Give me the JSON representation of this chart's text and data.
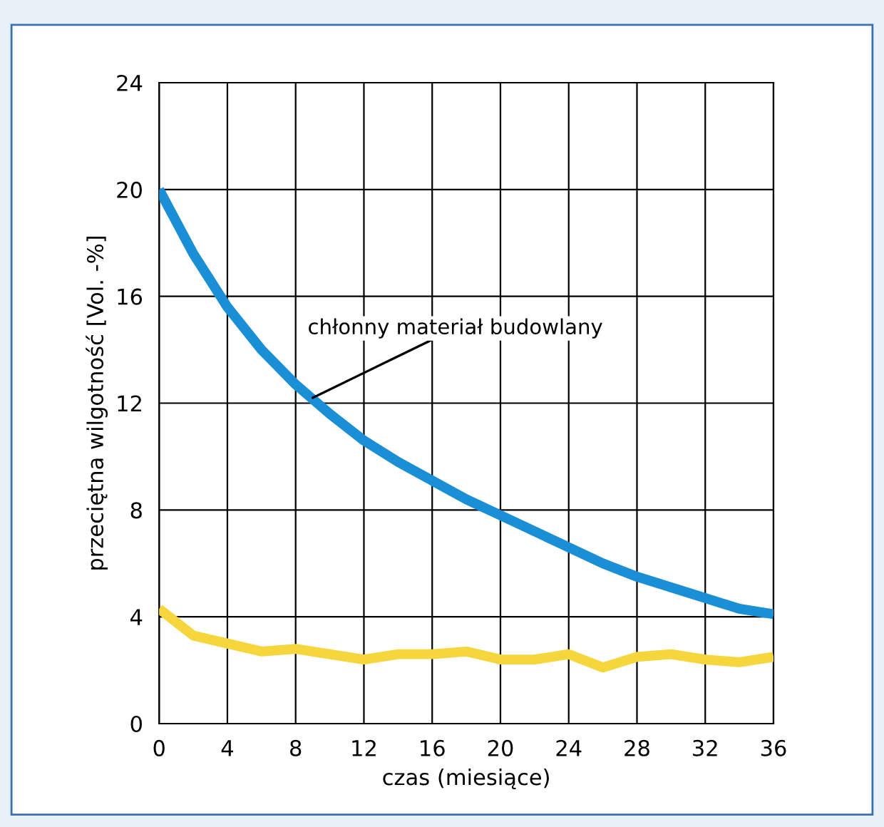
{
  "chart_data": {
    "type": "line",
    "xlabel": "czas (miesiące)",
    "ylabel": "przeciętna wilgotność [Vol. -%]",
    "x": [
      0,
      2,
      4,
      6,
      8,
      10,
      12,
      14,
      16,
      18,
      20,
      22,
      24,
      26,
      28,
      30,
      32,
      34,
      36
    ],
    "series": [
      {
        "color": "#1a8fd6",
        "values": [
          20,
          17.6,
          15.6,
          14.0,
          12.7,
          11.6,
          10.6,
          9.8,
          9.1,
          8.4,
          7.8,
          7.2,
          6.6,
          6.0,
          5.5,
          5.1,
          4.7,
          4.3,
          4.1
        ]
      },
      {
        "color": "#f5d63c",
        "values": [
          4.3,
          3.3,
          3.0,
          2.7,
          2.8,
          2.6,
          2.4,
          2.6,
          2.6,
          2.7,
          2.4,
          2.4,
          2.6,
          2.1,
          2.5,
          2.6,
          2.4,
          2.3,
          2.5
        ]
      }
    ],
    "xlim": [
      0,
      36
    ],
    "xticks": [
      0,
      4,
      8,
      12,
      16,
      20,
      24,
      28,
      32,
      36
    ],
    "ylim": [
      0,
      24
    ],
    "yticks": [
      0,
      4,
      8,
      12,
      16,
      20,
      24
    ],
    "grid": true,
    "legend": false,
    "marker": "none",
    "line_style": "solid",
    "annotations": [
      {
        "text": "chłonny materiał budowlany",
        "x": 9,
        "y": 12.2
      }
    ]
  }
}
